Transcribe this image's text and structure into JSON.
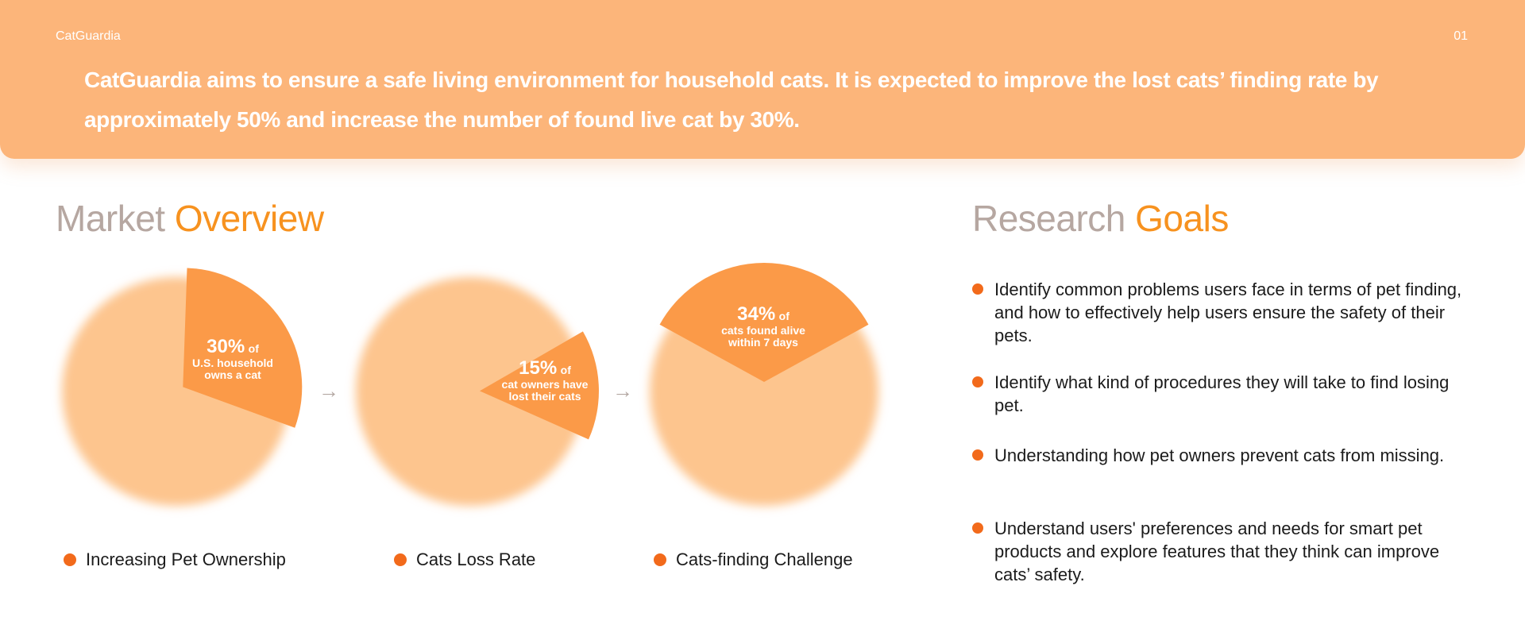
{
  "header": {
    "brand": "CatGuardia",
    "page_number": "01",
    "mission": "CatGuardia aims to ensure a safe living environment for household cats. It is expected to improve the lost cats’ finding rate by approximately 50% and increase the number of found live cat by 30%."
  },
  "market": {
    "title_muted": "Market",
    "title_accent": "Overview",
    "pies": [
      {
        "value": 30,
        "pct_label": "30%",
        "of_label": "of",
        "line1": "U.S. household",
        "line2": "owns a cat",
        "legend": "Increasing Pet Ownership"
      },
      {
        "value": 15,
        "pct_label": "15%",
        "of_label": "of",
        "line1": "cat owners have",
        "line2": "lost their cats",
        "legend": "Cats Loss Rate"
      },
      {
        "value": 34,
        "pct_label": "34%",
        "of_label": "of",
        "line1": "cats found alive",
        "line2": "within 7 days",
        "legend": "Cats-finding Challenge"
      }
    ]
  },
  "research": {
    "title_muted": "Research",
    "title_accent": "Goals",
    "goals": [
      "Identify common problems users face in terms of pet finding, and how to effectively help users ensure the safety of their pets.",
      "Identify what kind of procedures they will take to find losing pet.",
      "Understanding how pet owners prevent cats from missing.",
      "Understand users' preferences and needs for smart pet products and explore features that they think can improve cats’ safety."
    ]
  },
  "colors": {
    "banner": "#fcb57a",
    "pie_base": "#fdc58e",
    "pie_slice": "#fb9a48",
    "accent": "#f7921f",
    "bullet": "#f26a1b",
    "muted_title": "#b6a7a1"
  },
  "icons": {
    "flow_arrow": "→"
  }
}
